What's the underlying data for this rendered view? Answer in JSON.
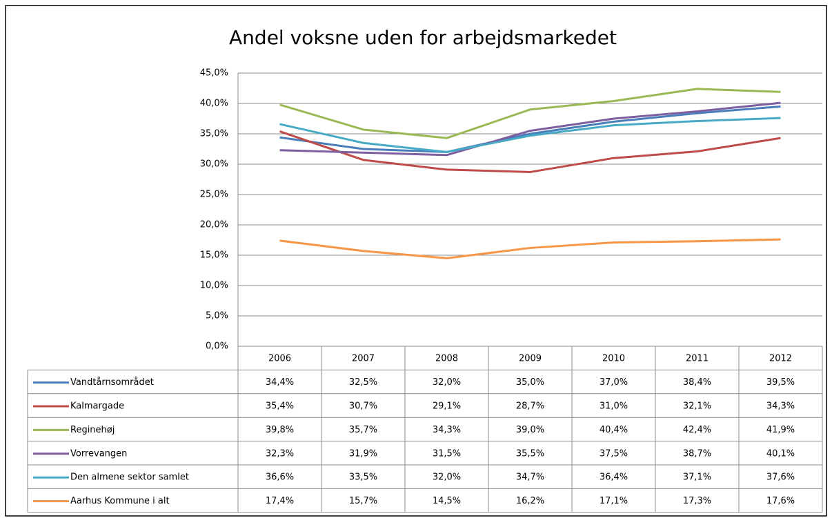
{
  "chart_data": {
    "type": "line",
    "title": "Andel voksne uden for arbejdsmarkedet",
    "categories": [
      "2006",
      "2007",
      "2008",
      "2009",
      "2010",
      "2011",
      "2012"
    ],
    "ylim": [
      0,
      45
    ],
    "yticks": [
      {
        "value": 0,
        "label": "0,0%"
      },
      {
        "value": 5,
        "label": "5,0%"
      },
      {
        "value": 10,
        "label": "10,0%"
      },
      {
        "value": 15,
        "label": "15,0%"
      },
      {
        "value": 20,
        "label": "20,0%"
      },
      {
        "value": 25,
        "label": "25,0%"
      },
      {
        "value": 30,
        "label": "30,0%"
      },
      {
        "value": 35,
        "label": "35,0%"
      },
      {
        "value": 40,
        "label": "40,0%"
      },
      {
        "value": 45,
        "label": "45,0%"
      }
    ],
    "grid": true,
    "series": [
      {
        "name": "Vandtårnsområdet",
        "color": "#4a7ebb",
        "values": [
          34.4,
          32.5,
          32.0,
          35.0,
          37.0,
          38.4,
          39.5
        ],
        "value_labels": [
          "34,4%",
          "32,5%",
          "32,0%",
          "35,0%",
          "37,0%",
          "38,4%",
          "39,5%"
        ]
      },
      {
        "name": "Kalmargade",
        "color": "#be4b48",
        "values": [
          35.4,
          30.7,
          29.1,
          28.7,
          31.0,
          32.1,
          34.3
        ],
        "value_labels": [
          "35,4%",
          "30,7%",
          "29,1%",
          "28,7%",
          "31,0%",
          "32,1%",
          "34,3%"
        ]
      },
      {
        "name": "Reginehøj",
        "color": "#98b954",
        "values": [
          39.8,
          35.7,
          34.3,
          39.0,
          40.4,
          42.4,
          41.9
        ],
        "value_labels": [
          "39,8%",
          "35,7%",
          "34,3%",
          "39,0%",
          "40,4%",
          "42,4%",
          "41,9%"
        ]
      },
      {
        "name": "Vorrevangen",
        "color": "#7d5fa0",
        "values": [
          32.3,
          31.9,
          31.5,
          35.5,
          37.5,
          38.7,
          40.1
        ],
        "value_labels": [
          "32,3%",
          "31,9%",
          "31,5%",
          "35,5%",
          "37,5%",
          "38,7%",
          "40,1%"
        ]
      },
      {
        "name": "Den almene sektor samlet",
        "color": "#46aac5",
        "values": [
          36.6,
          33.5,
          32.0,
          34.7,
          36.4,
          37.1,
          37.6
        ],
        "value_labels": [
          "36,6%",
          "33,5%",
          "32,0%",
          "34,7%",
          "36,4%",
          "37,1%",
          "37,6%"
        ]
      },
      {
        "name": "Aarhus Kommune i alt",
        "color": "#f79646",
        "values": [
          17.4,
          15.7,
          14.5,
          16.2,
          17.1,
          17.3,
          17.6
        ],
        "value_labels": [
          "17,4%",
          "15,7%",
          "14,5%",
          "16,2%",
          "17,1%",
          "17,3%",
          "17,6%"
        ]
      }
    ]
  }
}
